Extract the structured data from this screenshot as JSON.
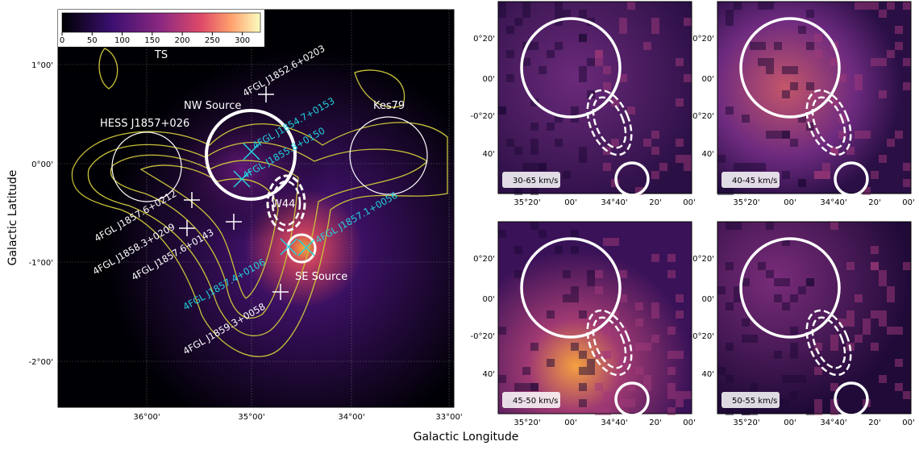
{
  "main_panel": {
    "colorbar": {
      "label": "TS",
      "ticks": [
        "0",
        "50",
        "100",
        "150",
        "200",
        "250",
        "300"
      ]
    },
    "x_ticks": [
      "36°00'",
      "35°00'",
      "34°00'",
      "33°00'"
    ],
    "y_ticks": [
      "1°00'",
      "0°00'",
      "-1°00'",
      "-2°00'"
    ],
    "labels": [
      "4FGL J1852.6+0203",
      "NW Source",
      "Kes79",
      "HESS J1857+026",
      "4FGL J1854.7+0153",
      "4FGL J1855.8+0150",
      "W44",
      "4FGL J1857.6+0212",
      "4FGL J1858.3+0209",
      "4FGL J1857.6+0143",
      "4FGL J1857.1+0056",
      "SE Source",
      "4FGL J1857.4+0106",
      "4FGL J1859.3+0058"
    ]
  },
  "velocity_panels": [
    {
      "label": "30-65 km/s"
    },
    {
      "label": "40-45 km/s"
    },
    {
      "label": "45-50 km/s"
    },
    {
      "label": "50-55 km/s"
    }
  ],
  "velocity_x_ticks": [
    "35°20'",
    "00'",
    "34°40'",
    "20'",
    "00'"
  ],
  "velocity_y_ticks": [
    "0°20'",
    "00'",
    "-0°20'",
    "40'"
  ],
  "x_axis_label": "Galactic Longitude",
  "y_axis_label": "Galactic Latitude"
}
